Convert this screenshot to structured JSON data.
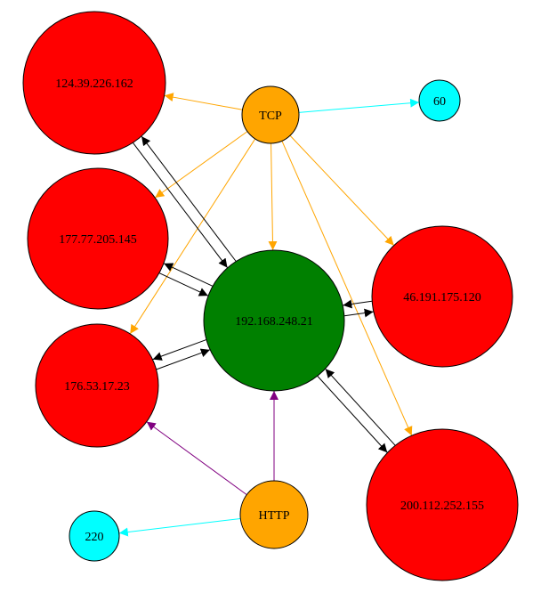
{
  "graph": {
    "colors": {
      "background": "#ffffff",
      "node_stroke": "#000000",
      "host_fill": "#ff0000",
      "center_fill": "#008000",
      "protocol_fill": "#ffa500",
      "count_fill": "#00ffff",
      "edge_black": "#000000",
      "edge_orange": "#ffa500",
      "edge_cyan": "#00ffff",
      "edge_purple": "#800080"
    },
    "nodes": {
      "n124": {
        "label": "124.39.226.162",
        "kind": "host"
      },
      "n177": {
        "label": "177.77.205.145",
        "kind": "host"
      },
      "n176": {
        "label": "176.53.17.23",
        "kind": "host"
      },
      "n46": {
        "label": "46.191.175.120",
        "kind": "host"
      },
      "n200": {
        "label": "200.112.252.155",
        "kind": "host"
      },
      "center": {
        "label": "192.168.248.21",
        "kind": "center"
      },
      "tcp": {
        "label": "TCP",
        "kind": "protocol"
      },
      "http": {
        "label": "HTTP",
        "kind": "protocol"
      },
      "c60": {
        "label": "60",
        "kind": "count"
      },
      "c220": {
        "label": "220",
        "kind": "count"
      }
    },
    "edges": [
      {
        "from": "tcp",
        "to": "n124",
        "color": "edge_orange"
      },
      {
        "from": "tcp",
        "to": "c60",
        "color": "edge_cyan"
      },
      {
        "from": "tcp",
        "to": "n177",
        "color": "edge_orange"
      },
      {
        "from": "tcp",
        "to": "n176",
        "color": "edge_orange"
      },
      {
        "from": "tcp",
        "to": "center",
        "color": "edge_orange"
      },
      {
        "from": "tcp",
        "to": "n46",
        "color": "edge_orange"
      },
      {
        "from": "tcp",
        "to": "n200",
        "color": "edge_orange"
      },
      {
        "from": "http",
        "to": "c220",
        "color": "edge_cyan"
      },
      {
        "from": "http",
        "to": "n176",
        "color": "edge_purple"
      },
      {
        "from": "http",
        "to": "center",
        "color": "edge_purple"
      },
      {
        "from": "center",
        "to": "n124",
        "color": "edge_black"
      },
      {
        "from": "n124",
        "to": "center",
        "color": "edge_black"
      },
      {
        "from": "center",
        "to": "n177",
        "color": "edge_black"
      },
      {
        "from": "n177",
        "to": "center",
        "color": "edge_black"
      },
      {
        "from": "center",
        "to": "n176",
        "color": "edge_black"
      },
      {
        "from": "n176",
        "to": "center",
        "color": "edge_black"
      },
      {
        "from": "center",
        "to": "n46",
        "color": "edge_black"
      },
      {
        "from": "n46",
        "to": "center",
        "color": "edge_black"
      },
      {
        "from": "center",
        "to": "n200",
        "color": "edge_black"
      },
      {
        "from": "n200",
        "to": "center",
        "color": "edge_black"
      }
    ]
  }
}
